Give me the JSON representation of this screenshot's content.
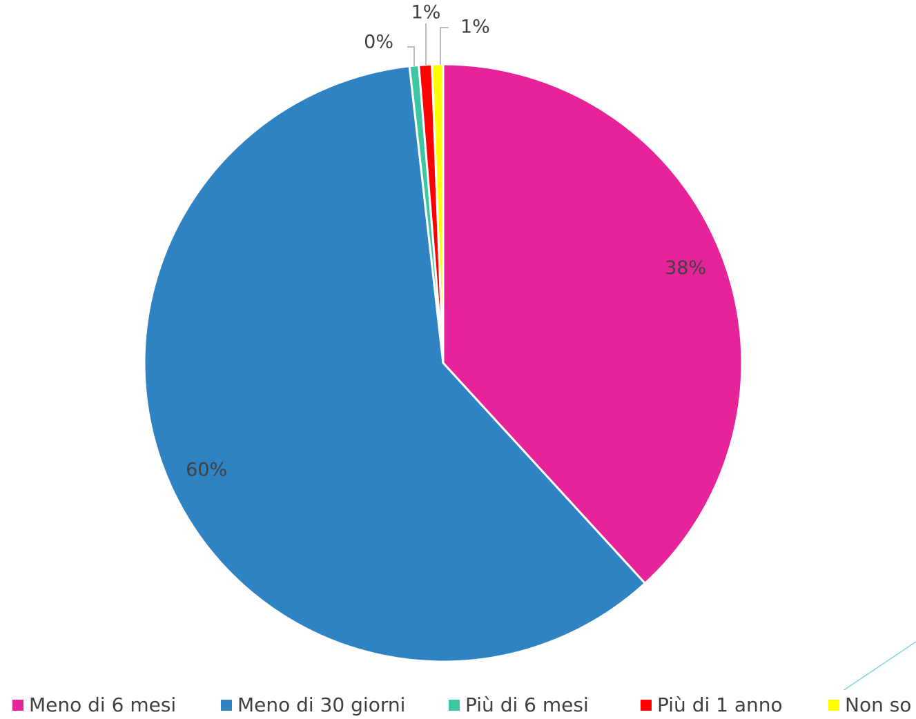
{
  "chart_data": {
    "type": "pie",
    "title": "",
    "slices": [
      {
        "label": "Meno di 6 mesi",
        "value": 38.2,
        "data_label": "38%",
        "color": "#E7239A"
      },
      {
        "label": "Meno di 30 giorni",
        "value": 60.0,
        "data_label": "60%",
        "color": "#2F83C2"
      },
      {
        "label": "Più di 6 mesi",
        "value": 0.5,
        "data_label": "0%",
        "color": "#3CC7A2"
      },
      {
        "label": "Più di 1 anno",
        "value": 0.7,
        "data_label": "1%",
        "color": "#FF0000"
      },
      {
        "label": "Non so",
        "value": 0.6,
        "data_label": "1%",
        "color": "#FFFF00"
      }
    ],
    "start_angle_deg": 0,
    "direction": "clockwise",
    "legend_position": "bottom"
  }
}
